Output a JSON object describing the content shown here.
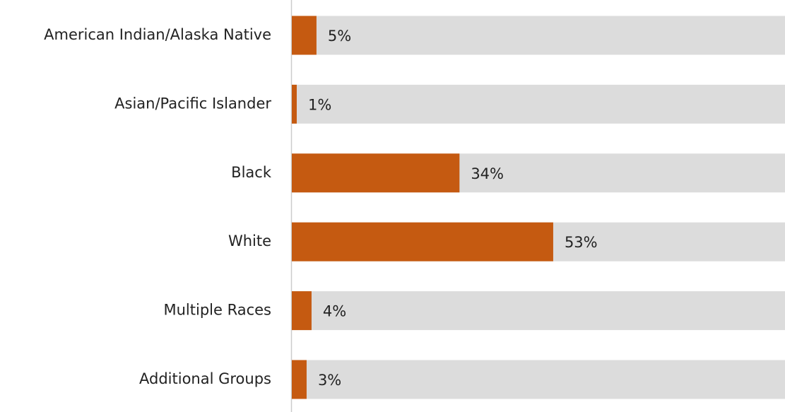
{
  "chart_data": {
    "type": "barh",
    "categories": [
      "American Indian/Alaska Native",
      "Asian/Pacific Islander",
      "Black",
      "White",
      "Multiple Races",
      "Additional Groups"
    ],
    "values": [
      5,
      1,
      34,
      53,
      4,
      3
    ],
    "value_labels": [
      "5%",
      "1%",
      "34%",
      "53%",
      "4%",
      "3%"
    ],
    "color": "#c55a11",
    "track_color": "#dcdcdc",
    "xlim": [
      0,
      100
    ]
  }
}
